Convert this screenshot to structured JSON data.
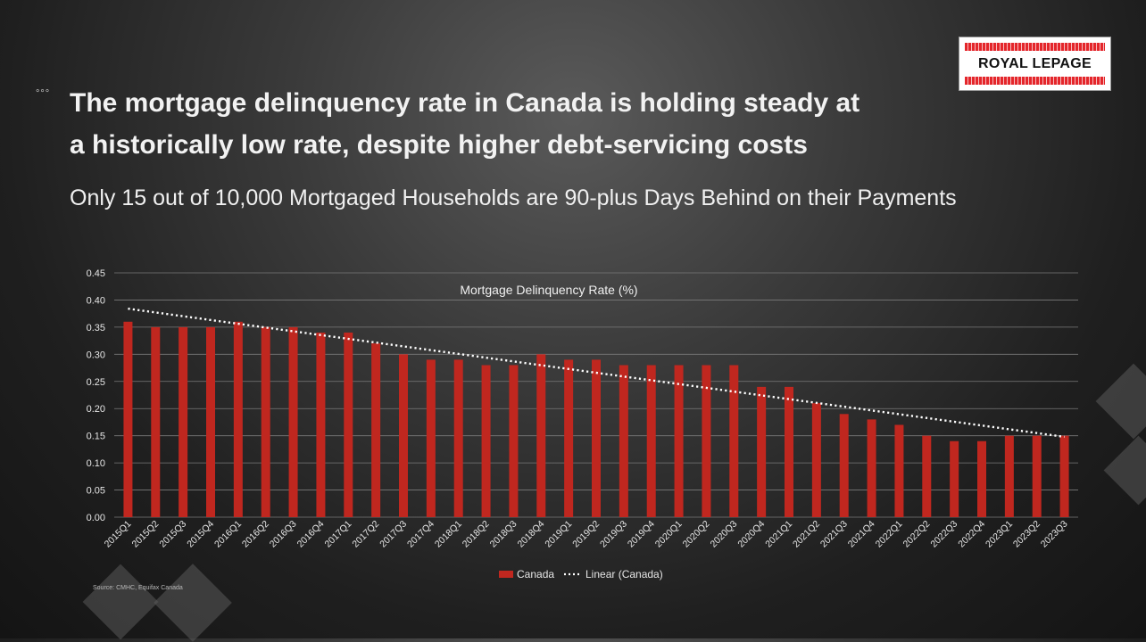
{
  "slide": {
    "heading_line1": "The mortgage delinquency rate in Canada is holding steady at",
    "heading_line2": "a historically low rate, despite higher debt-servicing costs",
    "subheading": "Only 15 out of 10,000 Mortgaged Households are 90-plus Days Behind on their Payments",
    "source": "Source: CMHC, Equifax Canada",
    "bullet_dots": "°°°"
  },
  "logo": {
    "text": "ROYAL LEPAGE",
    "bar_color": "#e4262b"
  },
  "chart_data": {
    "type": "bar",
    "title": "Mortgage Delinquency Rate (%)",
    "xlabel": "",
    "ylabel": "",
    "ylim": [
      0,
      0.45
    ],
    "yticks": [
      "0.00",
      "0.05",
      "0.10",
      "0.15",
      "0.20",
      "0.25",
      "0.30",
      "0.35",
      "0.40",
      "0.45"
    ],
    "grid": true,
    "legend_position": "bottom",
    "categories": [
      "2015Q1",
      "2015Q2",
      "2015Q3",
      "2015Q4",
      "2016Q1",
      "2016Q2",
      "2016Q3",
      "2016Q4",
      "2017Q1",
      "2017Q2",
      "2017Q3",
      "2017Q4",
      "2018Q1",
      "2018Q2",
      "2018Q3",
      "2018Q4",
      "2019Q1",
      "2019Q2",
      "2019Q3",
      "2019Q4",
      "2020Q1",
      "2020Q2",
      "2020Q3",
      "2020Q4",
      "2021Q1",
      "2021Q2",
      "2021Q3",
      "2021Q4",
      "2022Q1",
      "2022Q2",
      "2022Q3",
      "2022Q4",
      "2023Q1",
      "2023Q2",
      "2023Q3"
    ],
    "series": [
      {
        "name": "Canada",
        "color": "#c0271f",
        "values": [
          0.36,
          0.35,
          0.35,
          0.35,
          0.36,
          0.35,
          0.35,
          0.34,
          0.34,
          0.32,
          0.3,
          0.29,
          0.29,
          0.28,
          0.28,
          0.3,
          0.29,
          0.29,
          0.28,
          0.28,
          0.28,
          0.28,
          0.28,
          0.24,
          0.24,
          0.21,
          0.19,
          0.18,
          0.17,
          0.15,
          0.14,
          0.14,
          0.15,
          0.15,
          0.15
        ]
      }
    ],
    "trendline": {
      "name": "Linear (Canada)",
      "start": 0.384,
      "end": 0.148,
      "color": "#ffffff"
    }
  }
}
